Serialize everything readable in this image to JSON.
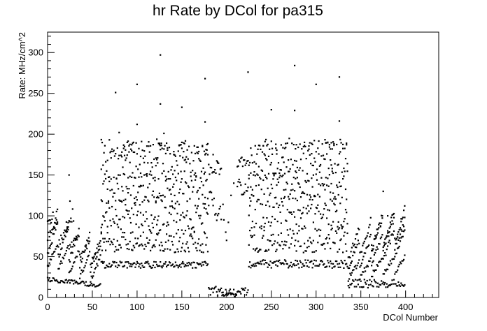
{
  "chart_data": {
    "type": "scatter",
    "title": "hr Rate by DCol for pa315",
    "xlabel": "DCol Number",
    "ylabel": "Rate: MHz/cm^2",
    "xlim": [
      0,
      437
    ],
    "ylim": [
      0,
      325
    ],
    "x_ticks": [
      "0",
      "50",
      "100",
      "150",
      "200",
      "250",
      "300",
      "350",
      "400"
    ],
    "y_ticks": [
      "0",
      "50",
      "100",
      "150",
      "200",
      "250",
      "300"
    ],
    "grid": false,
    "legend": "none",
    "marker_color": "#000000",
    "dcol_range": [
      0,
      400
    ],
    "series": [
      {
        "points": [
          [
            76,
            251
          ],
          [
            100,
            261
          ],
          [
            126,
            297
          ],
          [
            126,
            237
          ],
          [
            150,
            233
          ],
          [
            176,
            268
          ],
          [
            176,
            215
          ],
          [
            224,
            276
          ],
          [
            250,
            230
          ],
          [
            276,
            284
          ],
          [
            276,
            229
          ],
          [
            300,
            261
          ],
          [
            326,
            270
          ],
          [
            326,
            216
          ],
          [
            80,
            202
          ],
          [
            100,
            212
          ],
          [
            130,
            201
          ],
          [
            24,
            150
          ],
          [
            25,
            118
          ],
          [
            60,
            80
          ],
          [
            62,
            42
          ],
          [
            196,
            114
          ],
          [
            197,
            95
          ],
          [
            199,
            80
          ],
          [
            200,
            70
          ],
          [
            202,
            92
          ],
          [
            205,
            125
          ],
          [
            208,
            140
          ],
          [
            339,
            42
          ],
          [
            375,
            130
          ],
          [
            380,
            100
          ],
          [
            395,
            93
          ],
          [
            185,
            175
          ],
          [
            190,
            165
          ],
          [
            225,
            150
          ]
        ]
      }
    ]
  }
}
